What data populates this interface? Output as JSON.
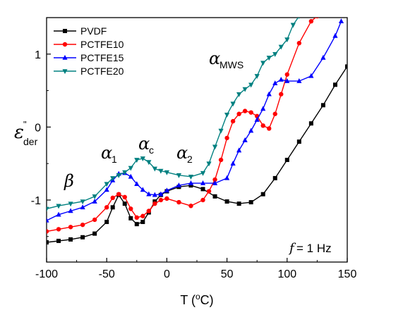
{
  "chart_data": {
    "type": "line",
    "xlabel": "T (°C)",
    "ylabel": "ε\"der",
    "xlim": [
      -100,
      150
    ],
    "ylim": [
      -1.85,
      1.5
    ],
    "x_ticks": [
      -100,
      -50,
      0,
      50,
      100,
      150
    ],
    "y_ticks": [
      -1,
      0,
      1
    ],
    "legend_position": "top-left",
    "series": [
      {
        "name": "PVDF",
        "color": "#000000",
        "marker": "square",
        "x": [
          -100,
          -90,
          -80,
          -70,
          -60,
          -50,
          -45,
          -40,
          -35,
          -30,
          -25,
          -20,
          -15,
          -10,
          -5,
          0,
          10,
          20,
          30,
          40,
          50,
          60,
          70,
          80,
          90,
          100,
          110,
          120,
          130,
          140,
          150
        ],
        "y": [
          -1.58,
          -1.56,
          -1.54,
          -1.51,
          -1.46,
          -1.3,
          -1.1,
          -0.93,
          -1.05,
          -1.25,
          -1.33,
          -1.3,
          -1.17,
          -1.02,
          -0.93,
          -0.88,
          -0.82,
          -0.8,
          -0.85,
          -0.95,
          -1.02,
          -1.05,
          -1.03,
          -0.92,
          -0.7,
          -0.45,
          -0.2,
          0.05,
          0.3,
          0.58,
          0.83
        ]
      },
      {
        "name": "PCTFE10",
        "color": "#ff0000",
        "marker": "circle",
        "x": [
          -100,
          -90,
          -80,
          -70,
          -60,
          -50,
          -45,
          -40,
          -35,
          -30,
          -25,
          -20,
          -15,
          -10,
          -5,
          0,
          10,
          20,
          30,
          35,
          40,
          45,
          50,
          55,
          60,
          65,
          70,
          75,
          80,
          85,
          90,
          95,
          100,
          110,
          120,
          125
        ],
        "y": [
          -1.43,
          -1.4,
          -1.37,
          -1.34,
          -1.27,
          -1.1,
          -0.97,
          -0.92,
          -0.96,
          -1.12,
          -1.24,
          -1.22,
          -1.15,
          -1.05,
          -1.0,
          -0.98,
          -1.03,
          -1.08,
          -1.0,
          -0.88,
          -0.72,
          -0.45,
          -0.15,
          0.08,
          0.18,
          0.22,
          0.2,
          0.15,
          0.02,
          -0.02,
          0.18,
          0.45,
          0.72,
          1.15,
          1.45,
          1.52
        ]
      },
      {
        "name": "PCTFE15",
        "color": "#0000ff",
        "marker": "triangle-up",
        "x": [
          -100,
          -90,
          -80,
          -70,
          -60,
          -50,
          -45,
          -40,
          -35,
          -30,
          -25,
          -20,
          -15,
          -10,
          -5,
          0,
          10,
          20,
          30,
          40,
          50,
          55,
          60,
          65,
          70,
          75,
          80,
          85,
          90,
          95,
          100,
          110,
          120,
          130,
          140,
          145
        ],
        "y": [
          -1.28,
          -1.2,
          -1.15,
          -1.1,
          -1.02,
          -0.86,
          -0.73,
          -0.64,
          -0.63,
          -0.68,
          -0.78,
          -0.86,
          -0.92,
          -0.93,
          -0.92,
          -0.87,
          -0.8,
          -0.77,
          -0.77,
          -0.77,
          -0.7,
          -0.5,
          -0.32,
          -0.18,
          -0.05,
          0.1,
          0.25,
          0.45,
          0.6,
          0.65,
          0.63,
          0.63,
          0.7,
          0.95,
          1.25,
          1.45
        ]
      },
      {
        "name": "PCTFE20",
        "color": "#008080",
        "marker": "triangle-down",
        "x": [
          -100,
          -90,
          -80,
          -70,
          -60,
          -50,
          -45,
          -40,
          -35,
          -30,
          -25,
          -20,
          -15,
          -10,
          -5,
          0,
          10,
          20,
          30,
          35,
          40,
          45,
          50,
          55,
          60,
          65,
          70,
          75,
          80,
          85,
          90,
          95,
          100,
          105,
          110
        ],
        "y": [
          -1.12,
          -1.08,
          -1.05,
          -1.02,
          -0.95,
          -0.78,
          -0.7,
          -0.66,
          -0.62,
          -0.56,
          -0.45,
          -0.43,
          -0.48,
          -0.57,
          -0.6,
          -0.62,
          -0.66,
          -0.68,
          -0.63,
          -0.5,
          -0.27,
          -0.05,
          0.17,
          0.32,
          0.45,
          0.52,
          0.58,
          0.7,
          0.88,
          0.95,
          1.0,
          1.1,
          1.2,
          1.4,
          1.52
        ]
      }
    ],
    "annotations": {
      "beta": "β",
      "alpha1": {
        "greek": "α",
        "sub": "1"
      },
      "alpha_c": {
        "greek": "α",
        "sub": "c"
      },
      "alpha2": {
        "greek": "α",
        "sub": "2"
      },
      "alpha_mws": {
        "greek": "α",
        "sub": "MWS"
      },
      "freq_symbol": "f",
      "freq_value": " = 1 Hz"
    }
  }
}
